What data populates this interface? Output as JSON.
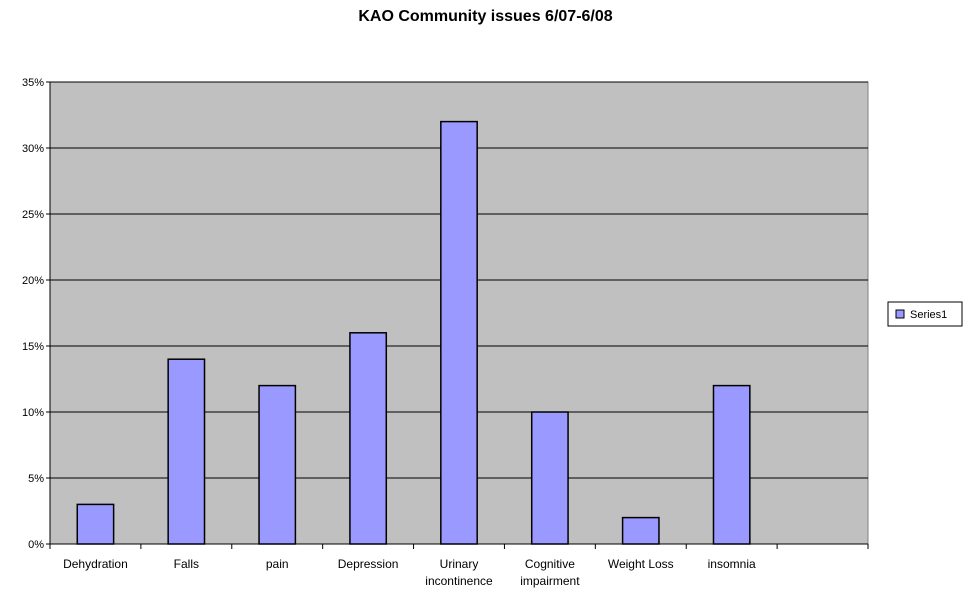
{
  "chart_data": {
    "type": "bar",
    "title": "KAO Community issues 6/07-6/08",
    "categories": [
      "Dehydration",
      "Falls",
      "pain",
      "Depression",
      "Urinary incontinence",
      "Cognitive impairment",
      "Weight Loss",
      "insomnia",
      ""
    ],
    "category_lines": [
      [
        "Dehydration"
      ],
      [
        "Falls"
      ],
      [
        "pain"
      ],
      [
        "Depression"
      ],
      [
        "Urinary",
        "incontinence"
      ],
      [
        "Cognitive",
        "impairment"
      ],
      [
        "Weight Loss"
      ],
      [
        "insomnia"
      ],
      []
    ],
    "series": [
      {
        "name": "Series1",
        "values": [
          3,
          14,
          12,
          16,
          32,
          10,
          2,
          12,
          null
        ]
      }
    ],
    "ylim": [
      0,
      35
    ],
    "yticks": [
      0,
      5,
      10,
      15,
      20,
      25,
      30,
      35
    ],
    "ytick_labels": [
      "0%",
      "5%",
      "10%",
      "15%",
      "20%",
      "25%",
      "30%",
      "35%"
    ],
    "grid": true,
    "legend": "right",
    "xlabel": "",
    "ylabel": "",
    "colors": {
      "plot_background": "#c0c0c0",
      "bar_fill": "#9999ff",
      "bar_stroke": "#000000",
      "grid": "#000000"
    }
  }
}
